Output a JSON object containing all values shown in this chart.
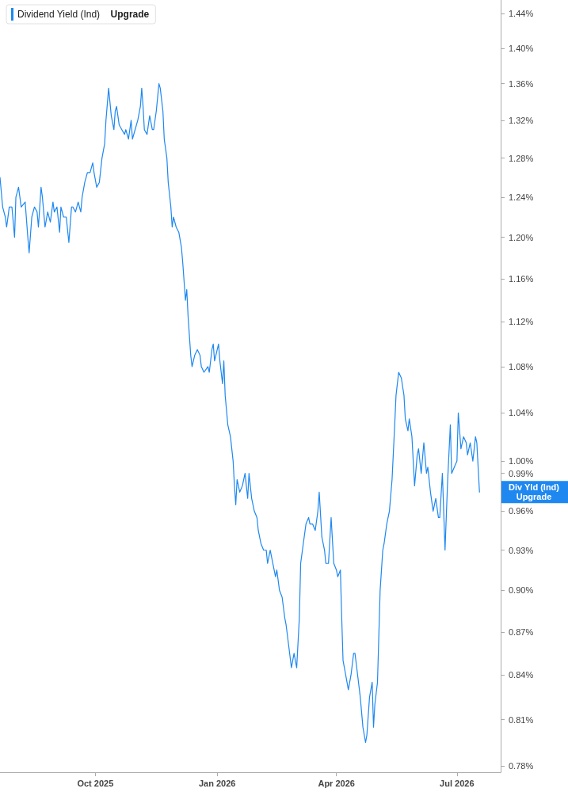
{
  "chart_data": {
    "type": "line",
    "log": "y",
    "legend": "top left",
    "grid": false,
    "marker": "none",
    "line_style": "solid",
    "xlim": [
      "2025-07-21",
      "2026-08-03"
    ],
    "xticks": [
      {
        "value": "2025-10-01",
        "label": "Oct 2025"
      },
      {
        "value": "2026-01-01",
        "label": "Jan 2026"
      },
      {
        "value": "2026-04-01",
        "label": "Apr 2026"
      },
      {
        "value": "2026-07-01",
        "label": "Jul 2026"
      }
    ],
    "ylim": [
      0.776,
      1.456
    ],
    "yticks": [
      {
        "value": 0.78,
        "label": "0.78%"
      },
      {
        "value": 0.81,
        "label": "0.81%"
      },
      {
        "value": 0.84,
        "label": "0.84%"
      },
      {
        "value": 0.87,
        "label": "0.87%"
      },
      {
        "value": 0.9,
        "label": "0.90%"
      },
      {
        "value": 0.93,
        "label": "0.93%"
      },
      {
        "value": 0.96,
        "label": "0.96%"
      },
      {
        "value": 0.99,
        "label": "0.99%"
      },
      {
        "value": 1.0,
        "label": "1.00%"
      },
      {
        "value": 1.04,
        "label": "1.04%"
      },
      {
        "value": 1.08,
        "label": "1.08%"
      },
      {
        "value": 1.12,
        "label": "1.12%"
      },
      {
        "value": 1.16,
        "label": "1.16%"
      },
      {
        "value": 1.2,
        "label": "1.20%"
      },
      {
        "value": 1.24,
        "label": "1.24%"
      },
      {
        "value": 1.28,
        "label": "1.28%"
      },
      {
        "value": 1.32,
        "label": "1.32%"
      },
      {
        "value": 1.36,
        "label": "1.36%"
      },
      {
        "value": 1.4,
        "label": "1.40%"
      },
      {
        "value": 1.44,
        "label": "1.44%"
      }
    ],
    "annotations": [
      "Upgrade",
      "Div Yld (Ind)\nUpgrade"
    ],
    "series": [
      {
        "name": "Dividend Yield (Ind)",
        "color": "#1e88f0",
        "x": [
          "2025-07-21",
          "2025-07-23",
          "2025-07-25",
          "2025-07-26",
          "2025-07-28",
          "2025-07-30",
          "2025-08-01",
          "2025-08-02",
          "2025-08-04",
          "2025-08-06",
          "2025-08-09",
          "2025-08-11",
          "2025-08-12",
          "2025-08-14",
          "2025-08-16",
          "2025-08-18",
          "2025-08-19",
          "2025-08-21",
          "2025-08-22",
          "2025-08-24",
          "2025-08-26",
          "2025-08-28",
          "2025-08-30",
          "2025-08-31",
          "2025-09-02",
          "2025-09-04",
          "2025-09-05",
          "2025-09-07",
          "2025-09-09",
          "2025-09-11",
          "2025-09-13",
          "2025-09-14",
          "2025-09-16",
          "2025-09-18",
          "2025-09-20",
          "2025-09-21",
          "2025-09-23",
          "2025-09-25",
          "2025-09-27",
          "2025-09-29",
          "2025-09-30",
          "2025-10-02",
          "2025-10-04",
          "2025-10-06",
          "2025-10-08",
          "2025-10-09",
          "2025-10-11",
          "2025-10-13",
          "2025-10-15",
          "2025-10-16",
          "2025-10-17",
          "2025-10-19",
          "2025-10-21",
          "2025-10-23",
          "2025-10-24",
          "2025-10-26",
          "2025-10-28",
          "2025-10-29",
          "2025-10-31",
          "2025-11-02",
          "2025-11-04",
          "2025-11-05",
          "2025-11-06",
          "2025-11-07",
          "2025-11-09",
          "2025-11-11",
          "2025-11-13",
          "2025-11-14",
          "2025-11-16",
          "2025-11-18",
          "2025-11-19",
          "2025-11-21",
          "2025-11-22",
          "2025-11-24",
          "2025-11-25",
          "2025-11-27",
          "2025-11-28",
          "2025-11-29",
          "2025-12-01",
          "2025-12-03",
          "2025-12-05",
          "2025-12-06",
          "2025-12-08",
          "2025-12-09",
          "2025-12-10",
          "2025-12-12",
          "2025-12-13",
          "2025-12-15",
          "2025-12-17",
          "2025-12-19",
          "2025-12-20",
          "2025-12-22",
          "2025-12-25",
          "2025-12-26",
          "2025-12-28",
          "2025-12-29",
          "2025-12-30",
          "2026-01-02",
          "2026-01-03",
          "2026-01-05",
          "2026-01-06",
          "2026-01-07",
          "2026-01-09",
          "2026-01-11",
          "2026-01-13",
          "2026-01-14",
          "2026-01-15",
          "2026-01-16",
          "2026-01-18",
          "2026-01-20",
          "2026-01-22",
          "2026-01-24",
          "2026-01-25",
          "2026-01-27",
          "2026-01-29",
          "2026-01-31",
          "2026-02-01",
          "2026-02-03",
          "2026-02-05",
          "2026-02-07",
          "2026-02-08",
          "2026-02-10",
          "2026-02-12",
          "2026-02-14",
          "2026-02-15",
          "2026-02-17",
          "2026-02-19",
          "2026-02-21",
          "2026-02-22",
          "2026-02-24",
          "2026-02-26",
          "2026-02-28",
          "2026-03-02",
          "2026-03-04",
          "2026-03-05",
          "2026-03-07",
          "2026-03-09",
          "2026-03-11",
          "2026-03-12",
          "2026-03-14",
          "2026-03-16",
          "2026-03-18",
          "2026-03-19",
          "2026-03-21",
          "2026-03-23",
          "2026-03-24",
          "2026-03-26",
          "2026-03-28",
          "2026-03-30",
          "2026-04-01",
          "2026-04-02",
          "2026-04-04",
          "2026-04-05",
          "2026-04-06",
          "2026-04-08",
          "2026-04-10",
          "2026-04-12",
          "2026-04-14",
          "2026-04-15",
          "2026-04-17",
          "2026-04-19",
          "2026-04-21",
          "2026-04-23",
          "2026-04-24",
          "2026-04-26",
          "2026-04-28",
          "2026-04-29",
          "2026-04-30",
          "2026-05-02",
          "2026-05-04",
          "2026-05-06",
          "2026-05-07",
          "2026-05-09",
          "2026-05-11",
          "2026-05-13",
          "2026-05-15",
          "2026-05-16",
          "2026-05-18",
          "2026-05-20",
          "2026-05-22",
          "2026-05-23",
          "2026-05-25",
          "2026-05-26",
          "2026-05-28",
          "2026-05-30",
          "2026-06-01",
          "2026-06-02",
          "2026-06-04",
          "2026-06-06",
          "2026-06-08",
          "2026-06-09",
          "2026-06-11",
          "2026-06-13",
          "2026-06-15",
          "2026-06-17",
          "2026-06-18",
          "2026-06-20",
          "2026-06-22",
          "2026-06-24",
          "2026-06-26",
          "2026-06-27",
          "2026-06-29",
          "2026-07-01",
          "2026-07-02",
          "2026-07-04",
          "2026-07-06",
          "2026-07-08",
          "2026-07-09",
          "2026-07-11",
          "2026-07-13",
          "2026-07-15",
          "2026-07-16",
          "2026-07-18"
        ],
        "values": [
          1.26,
          1.23,
          1.22,
          1.21,
          1.23,
          1.23,
          1.2,
          1.24,
          1.25,
          1.23,
          1.235,
          1.2,
          1.185,
          1.22,
          1.23,
          1.225,
          1.21,
          1.25,
          1.24,
          1.21,
          1.225,
          1.215,
          1.235,
          1.225,
          1.23,
          1.205,
          1.23,
          1.22,
          1.22,
          1.195,
          1.23,
          1.23,
          1.225,
          1.235,
          1.225,
          1.24,
          1.255,
          1.265,
          1.265,
          1.275,
          1.265,
          1.25,
          1.255,
          1.28,
          1.295,
          1.32,
          1.355,
          1.325,
          1.31,
          1.33,
          1.335,
          1.315,
          1.31,
          1.305,
          1.31,
          1.3,
          1.32,
          1.3,
          1.31,
          1.32,
          1.335,
          1.355,
          1.335,
          1.31,
          1.305,
          1.325,
          1.31,
          1.31,
          1.33,
          1.36,
          1.355,
          1.33,
          1.3,
          1.28,
          1.255,
          1.23,
          1.21,
          1.22,
          1.21,
          1.205,
          1.19,
          1.175,
          1.14,
          1.15,
          1.125,
          1.09,
          1.08,
          1.09,
          1.095,
          1.09,
          1.08,
          1.075,
          1.08,
          1.075,
          1.095,
          1.1,
          1.085,
          1.1,
          1.085,
          1.065,
          1.085,
          1.055,
          1.03,
          1.02,
          1.0,
          0.98,
          0.965,
          0.985,
          0.975,
          0.98,
          0.99,
          0.97,
          0.99,
          0.97,
          0.96,
          0.955,
          0.945,
          0.935,
          0.93,
          0.93,
          0.92,
          0.93,
          0.92,
          0.91,
          0.915,
          0.9,
          0.895,
          0.88,
          0.875,
          0.86,
          0.845,
          0.855,
          0.845,
          0.88,
          0.92,
          0.935,
          0.95,
          0.955,
          0.95,
          0.95,
          0.945,
          0.96,
          0.975,
          0.94,
          0.93,
          0.92,
          0.92,
          0.955,
          0.92,
          0.915,
          0.91,
          0.915,
          0.88,
          0.85,
          0.84,
          0.83,
          0.84,
          0.855,
          0.855,
          0.84,
          0.825,
          0.805,
          0.795,
          0.8,
          0.825,
          0.835,
          0.805,
          0.82,
          0.835,
          0.9,
          0.93,
          0.935,
          0.95,
          0.96,
          0.985,
          1.03,
          1.055,
          1.075,
          1.07,
          1.055,
          1.035,
          1.025,
          1.035,
          1.02,
          0.98,
          1.005,
          1.01,
          0.99,
          1.015,
          0.99,
          0.995,
          0.975,
          0.96,
          0.97,
          0.955,
          0.955,
          0.99,
          0.93,
          0.985,
          1.03,
          0.99,
          0.995,
          1.0,
          1.04,
          1.01,
          1.02,
          1.015,
          1.005,
          1.015,
          1.0,
          1.02,
          1.015,
          0.975
        ]
      }
    ]
  }
}
